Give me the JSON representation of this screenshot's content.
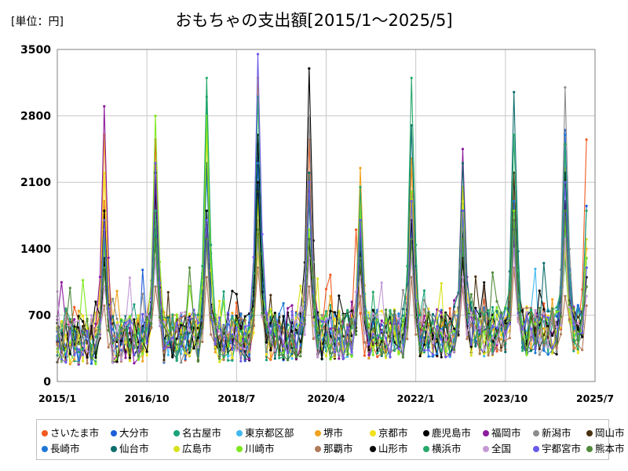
{
  "chart_data": {
    "type": "line",
    "title": "おもちゃの支出額[2015/1～2025/5]",
    "unit_label": "[単位：円]",
    "x_ticks": [
      "2015/1",
      "2016/10",
      "2018/7",
      "2020/4",
      "2022/1",
      "2023/10",
      "2025/7"
    ],
    "y_ticks": [
      "0",
      "700",
      "1400",
      "2100",
      "2800",
      "3500"
    ],
    "ylim": [
      0,
      3500
    ],
    "x_start": "2015/1",
    "x_end": "2025/7",
    "data_start": "2015/1",
    "data_end": "2025/5",
    "grid": true,
    "legend_position": "bottom",
    "series": [
      {
        "name": "さいたま市",
        "color": "#f25a1f",
        "peaks": [
          [
            11,
            1900
          ],
          [
            23,
            2550
          ],
          [
            35,
            1650
          ],
          [
            47,
            2400
          ],
          [
            59,
            2550
          ],
          [
            70,
            1600
          ],
          [
            83,
            2300
          ],
          [
            95,
            1500
          ],
          [
            107,
            2200
          ],
          [
            119,
            1450
          ],
          [
            124,
            2550
          ]
        ]
      },
      {
        "name": "大分市",
        "color": "#1e5fd8",
        "peaks": [
          [
            11,
            1500
          ],
          [
            23,
            1900
          ],
          [
            35,
            1800
          ],
          [
            47,
            2500
          ],
          [
            59,
            1900
          ],
          [
            71,
            1850
          ],
          [
            83,
            1950
          ],
          [
            95,
            1300
          ],
          [
            107,
            2050
          ],
          [
            119,
            2650
          ],
          [
            124,
            1850
          ]
        ]
      },
      {
        "name": "名古屋市",
        "color": "#1aa37a",
        "peaks": [
          [
            11,
            1400
          ],
          [
            23,
            1500
          ],
          [
            35,
            3000
          ],
          [
            47,
            1950
          ],
          [
            59,
            1950
          ],
          [
            71,
            1900
          ],
          [
            83,
            1600
          ],
          [
            95,
            1400
          ],
          [
            107,
            1900
          ],
          [
            119,
            1300
          ],
          [
            124,
            1100
          ]
        ]
      },
      {
        "name": "東京都区部",
        "color": "#40b8ef",
        "peaks": [
          [
            11,
            1200
          ],
          [
            23,
            1300
          ],
          [
            35,
            2200
          ],
          [
            47,
            1600
          ],
          [
            59,
            1600
          ],
          [
            71,
            1800
          ],
          [
            83,
            1600
          ],
          [
            95,
            1500
          ],
          [
            107,
            1700
          ],
          [
            119,
            1600
          ],
          [
            124,
            1500
          ]
        ]
      },
      {
        "name": "堺市",
        "color": "#f0a31e",
        "peaks": [
          [
            11,
            2600
          ],
          [
            23,
            2000
          ],
          [
            35,
            2600
          ],
          [
            47,
            3200
          ],
          [
            59,
            2100
          ],
          [
            71,
            2250
          ],
          [
            83,
            2350
          ],
          [
            95,
            2000
          ],
          [
            107,
            1800
          ],
          [
            119,
            2250
          ],
          [
            124,
            1400
          ]
        ]
      },
      {
        "name": "京都市",
        "color": "#f2e21c",
        "peaks": [
          [
            11,
            2200
          ],
          [
            23,
            1500
          ],
          [
            35,
            1400
          ],
          [
            47,
            1350
          ],
          [
            59,
            1600
          ],
          [
            71,
            1500
          ],
          [
            83,
            1700
          ],
          [
            95,
            2050
          ],
          [
            107,
            1400
          ],
          [
            119,
            1500
          ],
          [
            124,
            1300
          ]
        ]
      },
      {
        "name": "鹿児島市",
        "color": "#000000",
        "peaks": [
          [
            11,
            1800
          ],
          [
            23,
            2000
          ],
          [
            35,
            1600
          ],
          [
            47,
            2600
          ],
          [
            59,
            3300
          ],
          [
            71,
            1400
          ],
          [
            83,
            1800
          ],
          [
            95,
            1600
          ],
          [
            107,
            1900
          ],
          [
            119,
            2200
          ],
          [
            124,
            1200
          ]
        ]
      },
      {
        "name": "福岡市",
        "color": "#8e1c9e",
        "peaks": [
          [
            11,
            2900
          ],
          [
            23,
            2100
          ],
          [
            35,
            1450
          ],
          [
            47,
            1700
          ],
          [
            59,
            2100
          ],
          [
            71,
            1600
          ],
          [
            83,
            1800
          ],
          [
            95,
            2450
          ],
          [
            107,
            1500
          ],
          [
            119,
            1700
          ],
          [
            124,
            1300
          ]
        ]
      },
      {
        "name": "新潟市",
        "color": "#8c8c8c",
        "peaks": [
          [
            11,
            1600
          ],
          [
            23,
            1700
          ],
          [
            35,
            1500
          ],
          [
            47,
            1700
          ],
          [
            59,
            2800
          ],
          [
            71,
            1500
          ],
          [
            83,
            2000
          ],
          [
            95,
            1500
          ],
          [
            107,
            2000
          ],
          [
            119,
            3100
          ],
          [
            124,
            1200
          ]
        ]
      },
      {
        "name": "岡山市",
        "color": "#4a3110",
        "peaks": [
          [
            11,
            1200
          ],
          [
            23,
            1500
          ],
          [
            35,
            1600
          ],
          [
            47,
            1550
          ],
          [
            59,
            2000
          ],
          [
            71,
            1200
          ],
          [
            83,
            1500
          ],
          [
            95,
            1300
          ],
          [
            107,
            2200
          ],
          [
            119,
            1800
          ],
          [
            124,
            1000
          ]
        ]
      },
      {
        "name": "長崎市",
        "color": "#1f78d8",
        "peaks": [
          [
            11,
            1450
          ],
          [
            23,
            1500
          ],
          [
            35,
            1500
          ],
          [
            47,
            2300
          ],
          [
            59,
            2100
          ],
          [
            71,
            1900
          ],
          [
            83,
            1700
          ],
          [
            95,
            1800
          ],
          [
            107,
            1900
          ],
          [
            119,
            2600
          ],
          [
            124,
            1300
          ]
        ]
      },
      {
        "name": "仙台市",
        "color": "#0e6e6e",
        "peaks": [
          [
            11,
            1300
          ],
          [
            23,
            1600
          ],
          [
            35,
            2300
          ],
          [
            47,
            2000
          ],
          [
            59,
            2200
          ],
          [
            71,
            1500
          ],
          [
            83,
            2700
          ],
          [
            95,
            2300
          ],
          [
            107,
            3050
          ],
          [
            119,
            2500
          ],
          [
            124,
            1200
          ]
        ]
      },
      {
        "name": "広島市",
        "color": "#d8e21e",
        "peaks": [
          [
            11,
            1400
          ],
          [
            23,
            1800
          ],
          [
            35,
            2600
          ],
          [
            47,
            1900
          ],
          [
            59,
            1300
          ],
          [
            71,
            1900
          ],
          [
            83,
            1800
          ],
          [
            95,
            1900
          ],
          [
            107,
            1600
          ],
          [
            119,
            1400
          ],
          [
            124,
            1500
          ]
        ]
      },
      {
        "name": "川崎市",
        "color": "#7ee81e",
        "peaks": [
          [
            11,
            1500
          ],
          [
            23,
            2800
          ],
          [
            35,
            2800
          ],
          [
            47,
            2000
          ],
          [
            59,
            1600
          ],
          [
            71,
            1800
          ],
          [
            83,
            2000
          ],
          [
            95,
            1700
          ],
          [
            107,
            1800
          ],
          [
            119,
            1700
          ],
          [
            124,
            1300
          ]
        ]
      },
      {
        "name": "那覇市",
        "color": "#b07a5a",
        "peaks": [
          [
            11,
            800
          ],
          [
            23,
            1000
          ],
          [
            35,
            1100
          ],
          [
            47,
            1200
          ],
          [
            59,
            1000
          ],
          [
            71,
            900
          ],
          [
            83,
            1100
          ],
          [
            95,
            1000
          ],
          [
            107,
            1200
          ],
          [
            119,
            900
          ],
          [
            124,
            800
          ]
        ]
      },
      {
        "name": "山形市",
        "color": "#0a0a0a",
        "peaks": [
          [
            11,
            1300
          ],
          [
            23,
            2200
          ],
          [
            35,
            1800
          ],
          [
            47,
            2100
          ],
          [
            59,
            1500
          ],
          [
            71,
            1300
          ],
          [
            83,
            1700
          ],
          [
            95,
            1300
          ],
          [
            107,
            1600
          ],
          [
            119,
            1900
          ],
          [
            124,
            1100
          ]
        ]
      },
      {
        "name": "横浜市",
        "color": "#26a86a",
        "peaks": [
          [
            11,
            1500
          ],
          [
            23,
            1800
          ],
          [
            35,
            3200
          ],
          [
            47,
            3000
          ],
          [
            59,
            2050
          ],
          [
            71,
            2050
          ],
          [
            83,
            3200
          ],
          [
            95,
            1800
          ],
          [
            107,
            2600
          ],
          [
            119,
            2500
          ],
          [
            124,
            1800
          ]
        ]
      },
      {
        "name": "全国",
        "color": "#c49ad6",
        "peaks": [
          [
            11,
            1000
          ],
          [
            23,
            1300
          ],
          [
            35,
            1400
          ],
          [
            47,
            1500
          ],
          [
            59,
            1300
          ],
          [
            71,
            1100
          ],
          [
            83,
            1300
          ],
          [
            95,
            1100
          ],
          [
            107,
            1400
          ],
          [
            119,
            1500
          ],
          [
            124,
            900
          ]
        ]
      },
      {
        "name": "宇都宮市",
        "color": "#6a5ae8",
        "peaks": [
          [
            11,
            1700
          ],
          [
            23,
            2300
          ],
          [
            35,
            1700
          ],
          [
            47,
            3450
          ],
          [
            59,
            2100
          ],
          [
            71,
            1700
          ],
          [
            83,
            1900
          ],
          [
            95,
            1800
          ],
          [
            107,
            1600
          ],
          [
            119,
            2100
          ],
          [
            124,
            1200
          ]
        ]
      },
      {
        "name": "熊本市",
        "color": "#4f8a3a",
        "peaks": [
          [
            11,
            1200
          ],
          [
            23,
            1500
          ],
          [
            35,
            1500
          ],
          [
            47,
            1600
          ],
          [
            59,
            1500
          ],
          [
            71,
            1300
          ],
          [
            83,
            1500
          ],
          [
            95,
            1500
          ],
          [
            107,
            1700
          ],
          [
            119,
            1800
          ],
          [
            124,
            1000
          ]
        ]
      }
    ]
  }
}
